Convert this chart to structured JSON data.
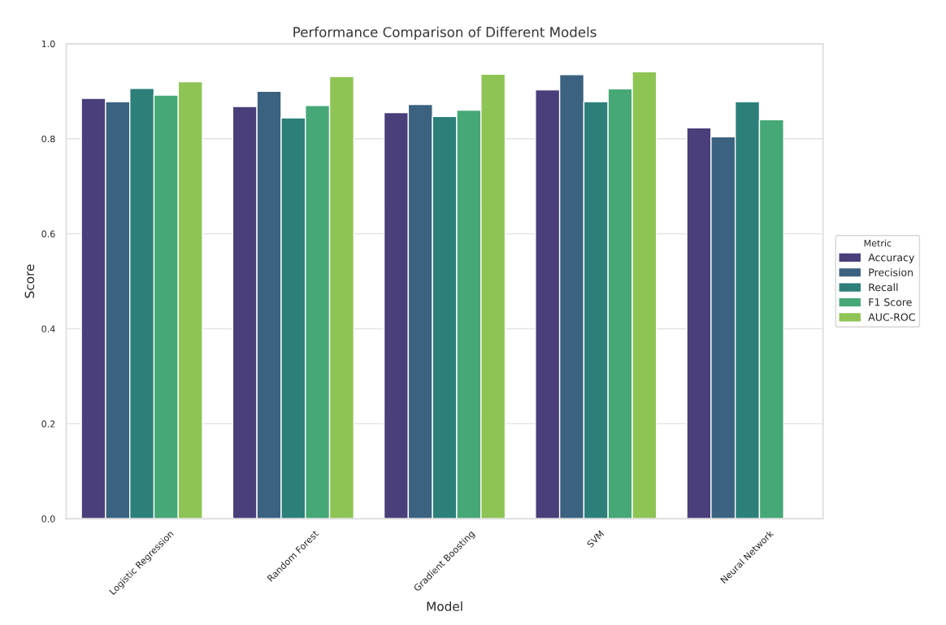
{
  "chart_data": {
    "type": "bar",
    "title": "Performance Comparison of Different Models",
    "xlabel": "Model",
    "ylabel": "Score",
    "legend_title": "Metric",
    "categories": [
      "Logistic Regression",
      "Random Forest",
      "Gradient Boosting",
      "SVM",
      "Neural Network"
    ],
    "series": [
      {
        "name": "Accuracy",
        "color": "#4a3f7a",
        "values": [
          0.885,
          0.868,
          0.855,
          0.903,
          0.823
        ]
      },
      {
        "name": "Precision",
        "color": "#3b6280",
        "values": [
          0.878,
          0.9,
          0.872,
          0.935,
          0.804
        ]
      },
      {
        "name": "Recall",
        "color": "#2c8079",
        "values": [
          0.906,
          0.844,
          0.847,
          0.878,
          0.878
        ]
      },
      {
        "name": "F1 Score",
        "color": "#45a876",
        "values": [
          0.892,
          0.87,
          0.86,
          0.905,
          0.84
        ]
      },
      {
        "name": "AUC-ROC",
        "color": "#8ec454",
        "values": [
          0.92,
          0.931,
          0.936,
          0.941,
          null
        ]
      }
    ],
    "ylim": [
      0,
      1
    ],
    "yticks": [
      {
        "value": 0,
        "label": "0.0"
      },
      0.2,
      0.4,
      0.6,
      0.8,
      {
        "value": 1,
        "label": "1.0"
      }
    ],
    "grid": "y",
    "legend": "right"
  }
}
